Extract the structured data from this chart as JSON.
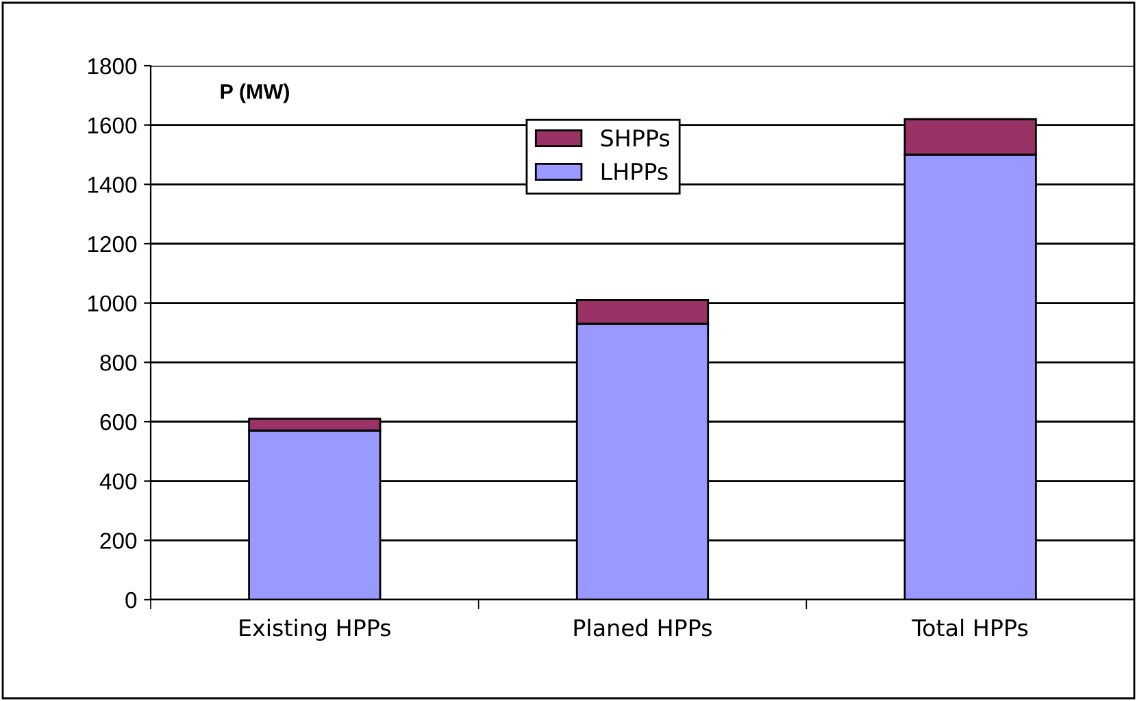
{
  "chart_data": {
    "type": "bar",
    "stacked": true,
    "ylabel": "P (MW)",
    "categories": [
      "Existing HPPs",
      "Planed HPPs",
      "Total HPPs"
    ],
    "series": [
      {
        "name": "LHPPs",
        "color": "#9999ff",
        "values": [
          570,
          930,
          1500
        ]
      },
      {
        "name": "SHPPs",
        "color": "#993366",
        "values": [
          40,
          80,
          120
        ]
      }
    ],
    "ylim": [
      0,
      1800
    ],
    "yticks": [
      0,
      200,
      400,
      600,
      800,
      1000,
      1200,
      1400,
      1600,
      1800
    ],
    "grid": "y",
    "legend": "top center"
  }
}
